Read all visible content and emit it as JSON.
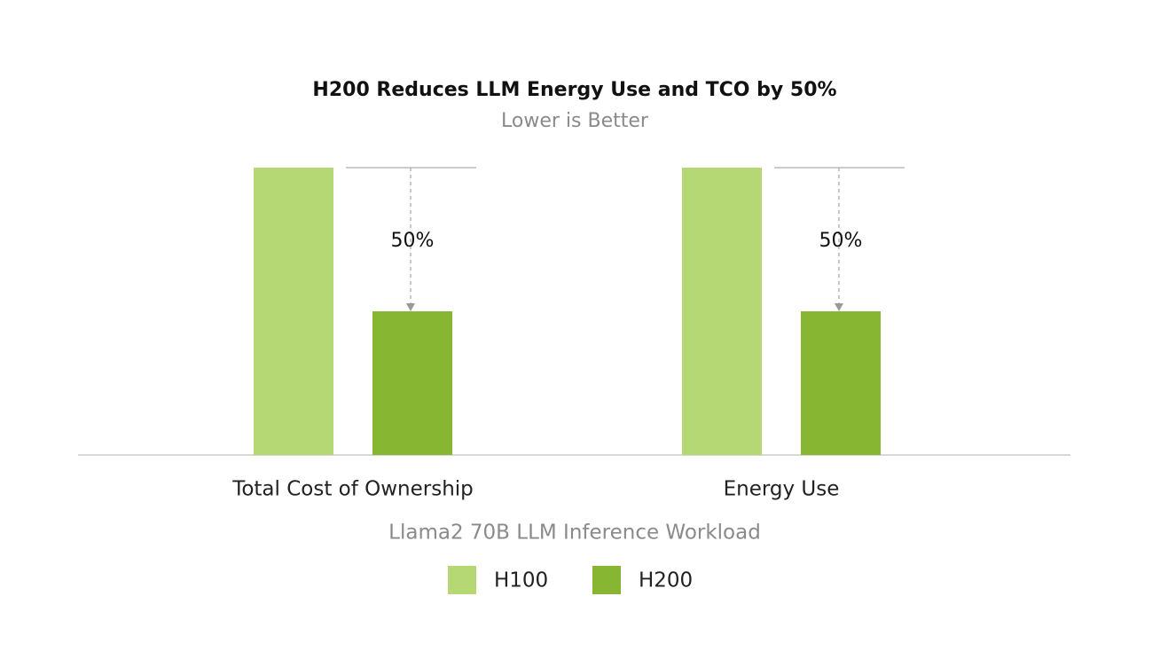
{
  "chart_data": {
    "type": "bar",
    "title": "H200 Reduces LLM Energy Use and TCO by 50%",
    "subtitle": "Lower is Better",
    "x_label": "Llama2 70B LLM Inference Workload",
    "categories": [
      "Total Cost of Ownership",
      "Energy Use"
    ],
    "series": [
      {
        "name": "H100",
        "color": "#b5d774",
        "values": [
          100,
          100
        ]
      },
      {
        "name": "H200",
        "color": "#86b632",
        "values": [
          50,
          50
        ]
      }
    ],
    "annotations": [
      "50%",
      "50%"
    ],
    "ylim": [
      0,
      100
    ]
  }
}
